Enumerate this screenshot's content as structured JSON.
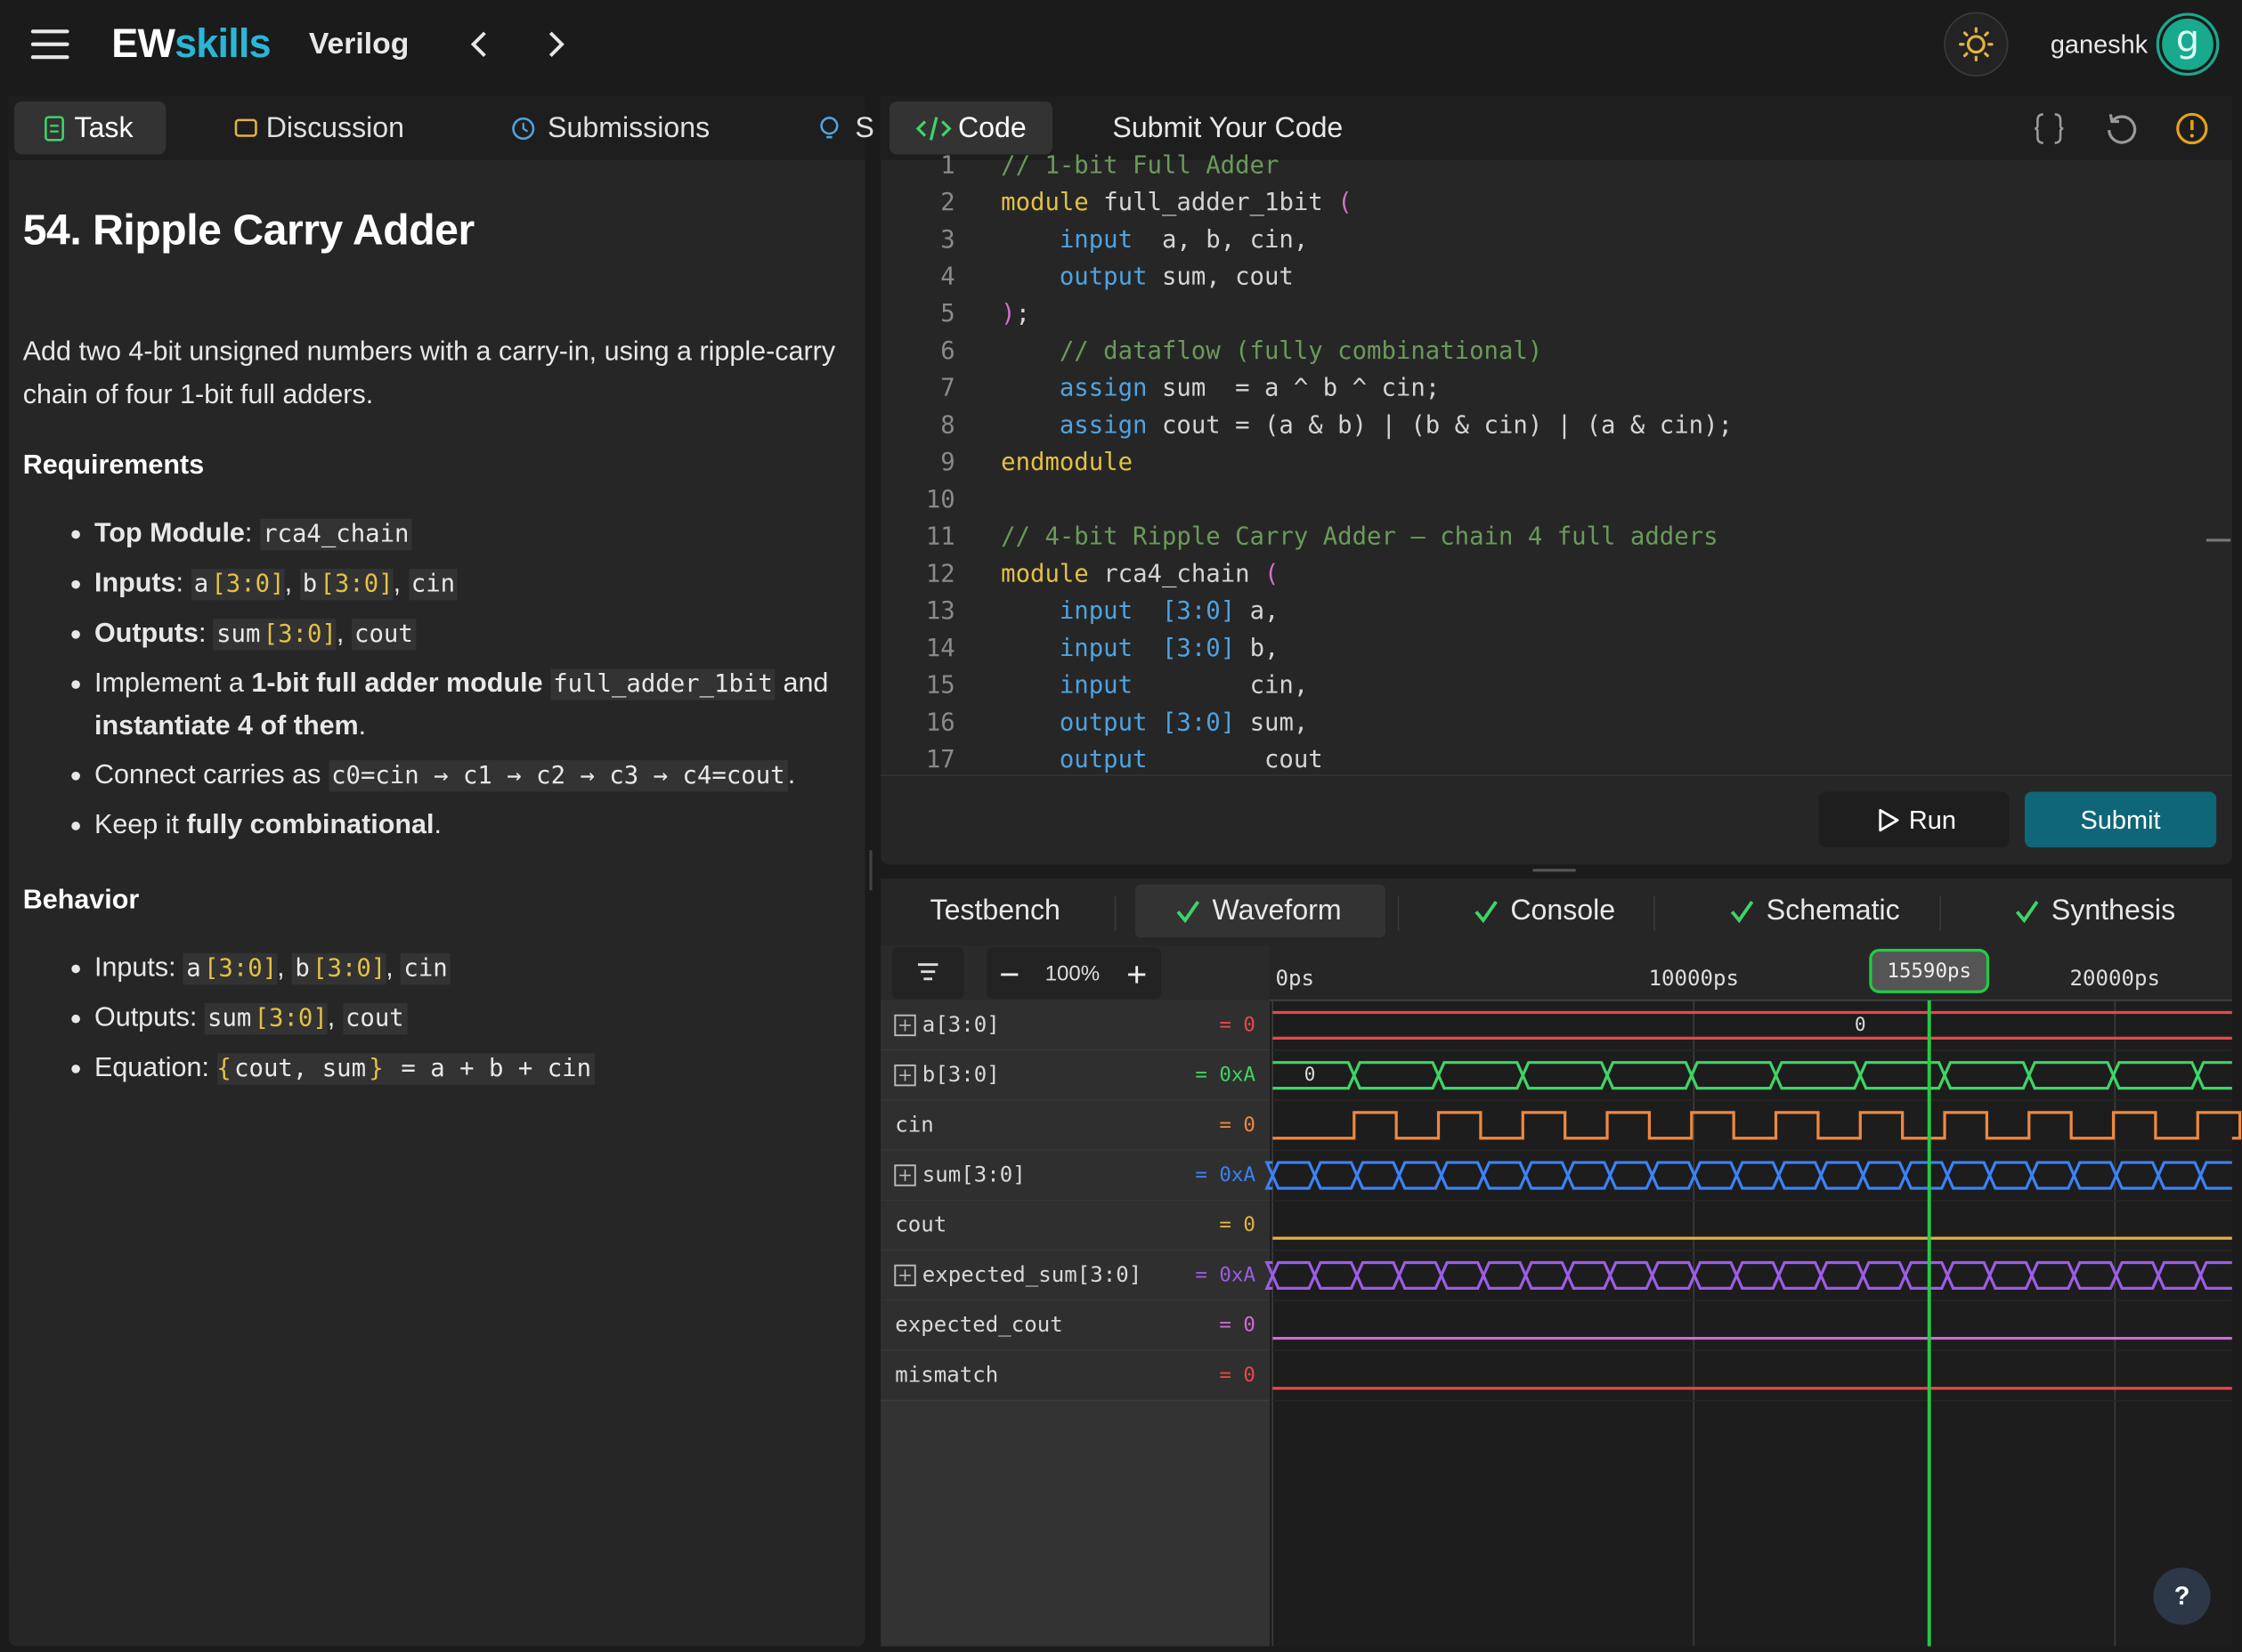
{
  "topbar": {
    "logo": {
      "first": "EW",
      "second": "skills"
    },
    "language": "Verilog",
    "user": "ganeshk",
    "avatar": "g"
  },
  "task": {
    "tabs": [
      "Task",
      "Discussion",
      "Submissions",
      "S"
    ],
    "title": "54. Ripple Carry Adder",
    "intro": "Add two 4-bit unsigned numbers with a carry-in, using a ripple-carry chain of four 1-bit full adders.",
    "sections": [
      {
        "heading": "Requirements",
        "items": [
          [
            {
              "text": "Top Module",
              "style": "bold"
            },
            {
              "text": ": "
            },
            {
              "text": "rca4_chain",
              "style": "code"
            }
          ],
          [
            {
              "text": "Inputs",
              "style": "bold"
            },
            {
              "text": ": "
            },
            {
              "text": "a",
              "style": "code"
            },
            {
              "text": "[3:0]",
              "style": "code-accent"
            },
            {
              "text": ", "
            },
            {
              "text": "b",
              "style": "code"
            },
            {
              "text": "[3:0]",
              "style": "code-accent"
            },
            {
              "text": ", "
            },
            {
              "text": "cin",
              "style": "code"
            }
          ],
          [
            {
              "text": "Outputs",
              "style": "bold"
            },
            {
              "text": ": "
            },
            {
              "text": "sum",
              "style": "code"
            },
            {
              "text": "[3:0]",
              "style": "code-accent"
            },
            {
              "text": ", "
            },
            {
              "text": "cout",
              "style": "code"
            }
          ],
          [
            {
              "text": "Implement a "
            },
            {
              "text": "1-bit full adder module",
              "style": "bold"
            },
            {
              "text": " "
            },
            {
              "text": "full_adder_1bit",
              "style": "code"
            },
            {
              "text": " and "
            },
            {
              "text": "instantiate 4 of them",
              "style": "bold"
            },
            {
              "text": "."
            }
          ],
          [
            {
              "text": "Connect carries as "
            },
            {
              "text": "c0=cin → c1 → c2 → c3 → c4=cout",
              "style": "code"
            },
            {
              "text": "."
            }
          ],
          [
            {
              "text": "Keep it "
            },
            {
              "text": "fully combinational",
              "style": "bold"
            },
            {
              "text": "."
            }
          ]
        ]
      },
      {
        "heading": "Behavior",
        "items": [
          [
            {
              "text": "Inputs: "
            },
            {
              "text": "a",
              "style": "code"
            },
            {
              "text": "[3:0]",
              "style": "code-accent"
            },
            {
              "text": ", "
            },
            {
              "text": "b",
              "style": "code"
            },
            {
              "text": "[3:0]",
              "style": "code-accent"
            },
            {
              "text": ", "
            },
            {
              "text": "cin",
              "style": "code"
            }
          ],
          [
            {
              "text": "Outputs: "
            },
            {
              "text": "sum",
              "style": "code"
            },
            {
              "text": "[3:0]",
              "style": "code-accent"
            },
            {
              "text": ", "
            },
            {
              "text": "cout",
              "style": "code"
            }
          ],
          [
            {
              "text": "Equation: "
            },
            {
              "text": "{",
              "style": "code-accent"
            },
            {
              "text": "cout, sum",
              "style": "code"
            },
            {
              "text": "}",
              "style": "code-accent"
            },
            {
              "text": " = a + b + cin",
              "style": "code"
            }
          ]
        ]
      }
    ]
  },
  "editor": {
    "tabs": [
      "Code",
      "Submit Your Code"
    ],
    "lines": [
      {
        "number": 1,
        "tokens": [
          {
            "text": "// 1-bit Full Adder",
            "color": "#6a9a5b"
          }
        ]
      },
      {
        "number": 2,
        "tokens": [
          {
            "text": "module",
            "color": "#e2c044"
          },
          {
            "text": " full_adder_1bit ",
            "color": "#d4d4d4"
          },
          {
            "text": "(",
            "color": "#d070c8"
          }
        ]
      },
      {
        "number": 3,
        "tokens": [
          {
            "text": "    input",
            "color": "#4fa3e0"
          },
          {
            "text": "  a, b, cin,",
            "color": "#d4d4d4"
          }
        ]
      },
      {
        "number": 4,
        "tokens": [
          {
            "text": "    output",
            "color": "#4fa3e0"
          },
          {
            "text": " sum, cout",
            "color": "#d4d4d4"
          }
        ]
      },
      {
        "number": 5,
        "tokens": [
          {
            "text": ")",
            "color": "#d070c8"
          },
          {
            "text": ";",
            "color": "#d4d4d4"
          }
        ]
      },
      {
        "number": 6,
        "tokens": [
          {
            "text": "    // dataflow (fully combinational)",
            "color": "#6a9a5b"
          }
        ]
      },
      {
        "number": 7,
        "tokens": [
          {
            "text": "    assign",
            "color": "#4fa3e0"
          },
          {
            "text": " sum  = a ^ b ^ cin;",
            "color": "#d4d4d4"
          }
        ]
      },
      {
        "number": 8,
        "tokens": [
          {
            "text": "    assign",
            "color": "#4fa3e0"
          },
          {
            "text": " cout = (a & b) | (b & cin) | (a & cin);",
            "color": "#d4d4d4"
          }
        ]
      },
      {
        "number": 9,
        "tokens": [
          {
            "text": "endmodule",
            "color": "#e2c044"
          }
        ]
      },
      {
        "number": 10,
        "tokens": []
      },
      {
        "number": 11,
        "tokens": [
          {
            "text": "// 4-bit Ripple Carry Adder — chain 4 full adders",
            "color": "#6a9a5b"
          }
        ]
      },
      {
        "number": 12,
        "tokens": [
          {
            "text": "module",
            "color": "#e2c044"
          },
          {
            "text": " rca4_chain ",
            "color": "#d4d4d4"
          },
          {
            "text": "(",
            "color": "#d070c8"
          }
        ]
      },
      {
        "number": 13,
        "tokens": [
          {
            "text": "    input",
            "color": "#4fa3e0"
          },
          {
            "text": "  [3:0]",
            "color": "#4fa3e0"
          },
          {
            "text": " a,",
            "color": "#d4d4d4"
          }
        ]
      },
      {
        "number": 14,
        "tokens": [
          {
            "text": "    input",
            "color": "#4fa3e0"
          },
          {
            "text": "  [3:0]",
            "color": "#4fa3e0"
          },
          {
            "text": " b,",
            "color": "#d4d4d4"
          }
        ]
      },
      {
        "number": 15,
        "tokens": [
          {
            "text": "    input",
            "color": "#4fa3e0"
          },
          {
            "text": "        cin,",
            "color": "#d4d4d4"
          }
        ]
      },
      {
        "number": 16,
        "tokens": [
          {
            "text": "    output",
            "color": "#4fa3e0"
          },
          {
            "text": " [3:0]",
            "color": "#4fa3e0"
          },
          {
            "text": " sum,",
            "color": "#d4d4d4"
          }
        ]
      },
      {
        "number": 17,
        "tokens": [
          {
            "text": "    output",
            "color": "#4fa3e0"
          },
          {
            "text": "        cout",
            "color": "#d4d4d4"
          }
        ]
      }
    ],
    "buttons": {
      "run": "Run",
      "submit": "Submit"
    }
  },
  "results": {
    "tabs": [
      {
        "label": "Testbench",
        "checked": false
      },
      {
        "label": "Waveform",
        "checked": true
      },
      {
        "label": "Console",
        "checked": true
      },
      {
        "label": "Schematic",
        "checked": true
      },
      {
        "label": "Synthesis",
        "checked": true
      }
    ],
    "zoom": "100%",
    "xlim": [
      0,
      22780
    ],
    "ticks": [
      {
        "value": 0,
        "label": "0ps"
      },
      {
        "value": 10000,
        "label": "10000ps"
      },
      {
        "value": 20000,
        "label": "20000ps"
      }
    ],
    "cursor": {
      "value": 15590,
      "label": "15590ps"
    },
    "signals": [
      {
        "name": "a[3:0]",
        "expandable": true,
        "value": "= 0",
        "color": "#e5484d",
        "kind": "bus",
        "wave_label": "0"
      },
      {
        "name": "b[3:0]",
        "expandable": true,
        "value": "= 0xA",
        "color": "#3fd466",
        "kind": "bus",
        "wave_label": "0"
      },
      {
        "name": "cin",
        "expandable": false,
        "value": "= 0",
        "color": "#f0883e",
        "kind": "bit"
      },
      {
        "name": "sum[3:0]",
        "expandable": true,
        "value": "= 0xA",
        "color": "#3b82f6",
        "kind": "bus"
      },
      {
        "name": "cout",
        "expandable": false,
        "value": "= 0",
        "color": "#e3b341",
        "kind": "bit"
      },
      {
        "name": "expected_sum[3:0]",
        "expandable": true,
        "value": "= 0xA",
        "color": "#9b5de5",
        "kind": "bus"
      },
      {
        "name": "expected_cout",
        "expandable": false,
        "value": "= 0",
        "color": "#d36ad6",
        "kind": "bit"
      },
      {
        "name": "mismatch",
        "expandable": false,
        "value": "= 0",
        "color": "#e5484d",
        "kind": "bit"
      }
    ]
  },
  "help": "?"
}
